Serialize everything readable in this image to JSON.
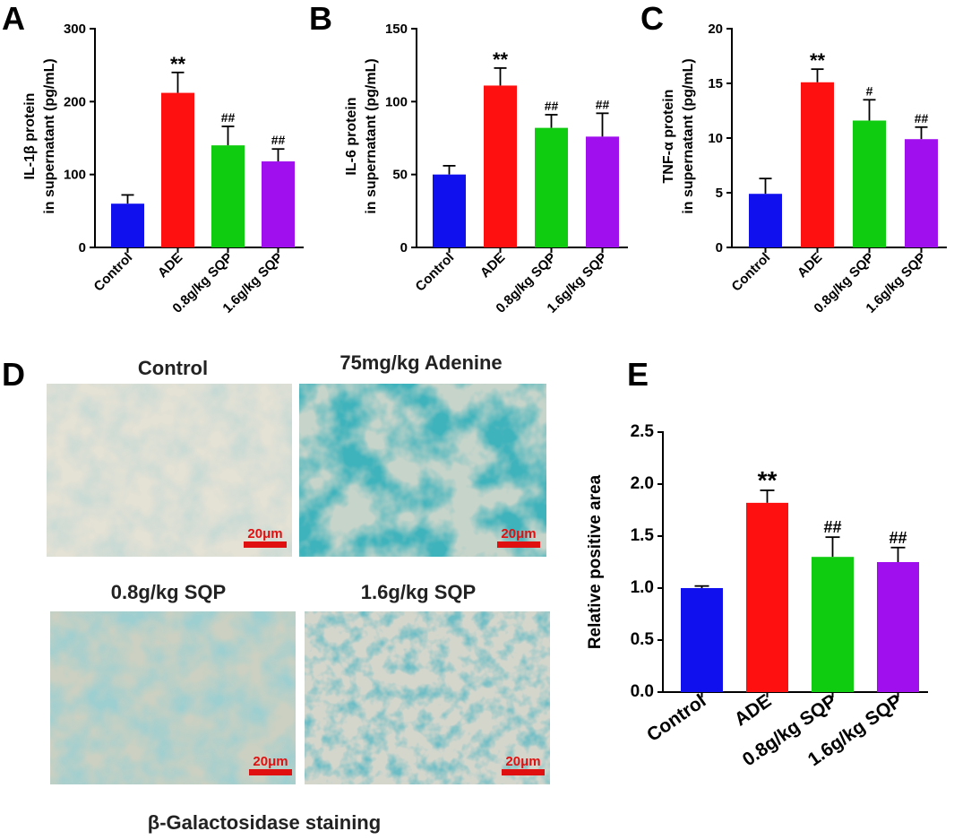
{
  "panel_labels": {
    "A": "A",
    "B": "B",
    "C": "C",
    "D": "D",
    "E": "E"
  },
  "chart_data": [
    {
      "id": "A",
      "type": "bar",
      "ylabel_line1": "IL-1β protein",
      "ylabel_line2": "in supernatant (pg/mL)",
      "ylim": [
        0,
        300
      ],
      "yticks": [
        0,
        100,
        200,
        300
      ],
      "categories": [
        "Control",
        "ADE",
        "0.8g/kg SQP",
        "1.6g/kg SQP"
      ],
      "values": [
        60,
        212,
        140,
        118
      ],
      "errors": [
        12,
        28,
        26,
        17
      ],
      "annotations": [
        "",
        "**",
        "##",
        "##"
      ],
      "colors": [
        "#1010ee",
        "#ff1010",
        "#10cc10",
        "#a010ee"
      ]
    },
    {
      "id": "B",
      "type": "bar",
      "ylabel_line1": "IL-6 protein",
      "ylabel_line2": "in supernatant (pg/mL)",
      "ylim": [
        0,
        150
      ],
      "yticks": [
        0,
        50,
        100,
        150
      ],
      "categories": [
        "Control",
        "ADE",
        "0.8g/kg SQP",
        "1.6g/kg SQP"
      ],
      "values": [
        50,
        111,
        82,
        76
      ],
      "errors": [
        6,
        12,
        9,
        16
      ],
      "annotations": [
        "",
        "**",
        "##",
        "##"
      ],
      "colors": [
        "#1010ee",
        "#ff1010",
        "#10cc10",
        "#a010ee"
      ]
    },
    {
      "id": "C",
      "type": "bar",
      "ylabel_line1": "TNF-α protein",
      "ylabel_line2": "in supernatant (pg/mL)",
      "ylim": [
        0,
        20
      ],
      "yticks": [
        0,
        5,
        10,
        15,
        20
      ],
      "categories": [
        "Control",
        "ADE",
        "0.8g/kg SQP",
        "1.6g/kg SQP"
      ],
      "values": [
        4.9,
        15.1,
        11.6,
        9.9
      ],
      "errors": [
        1.4,
        1.2,
        1.9,
        1.1
      ],
      "annotations": [
        "",
        "**",
        "#",
        "##"
      ],
      "colors": [
        "#1010ee",
        "#ff1010",
        "#10cc10",
        "#a010ee"
      ]
    },
    {
      "id": "E",
      "type": "bar",
      "ylabel_line1": "Relative positive area",
      "ylabel_line2": "",
      "ylim": [
        0,
        2.5
      ],
      "yticks": [
        "0.0",
        "0.5",
        "1.0",
        "1.5",
        "2.0",
        "2.5"
      ],
      "categories": [
        "Control",
        "ADE",
        "0.8g/kg SQP",
        "1.6g/kg SQP"
      ],
      "values": [
        1.0,
        1.82,
        1.3,
        1.25
      ],
      "errors": [
        0.02,
        0.12,
        0.19,
        0.14
      ],
      "annotations": [
        "",
        "**",
        "##",
        "##"
      ],
      "colors": [
        "#1010ee",
        "#ff1010",
        "#10cc10",
        "#a010ee"
      ]
    }
  ],
  "images": {
    "titles": [
      "Control",
      "75mg/kg Adenine",
      "0.8g/kg SQP",
      "1.6g/kg SQP"
    ],
    "scale_bar": "20μm",
    "caption": "β-Galactosidase staining"
  }
}
